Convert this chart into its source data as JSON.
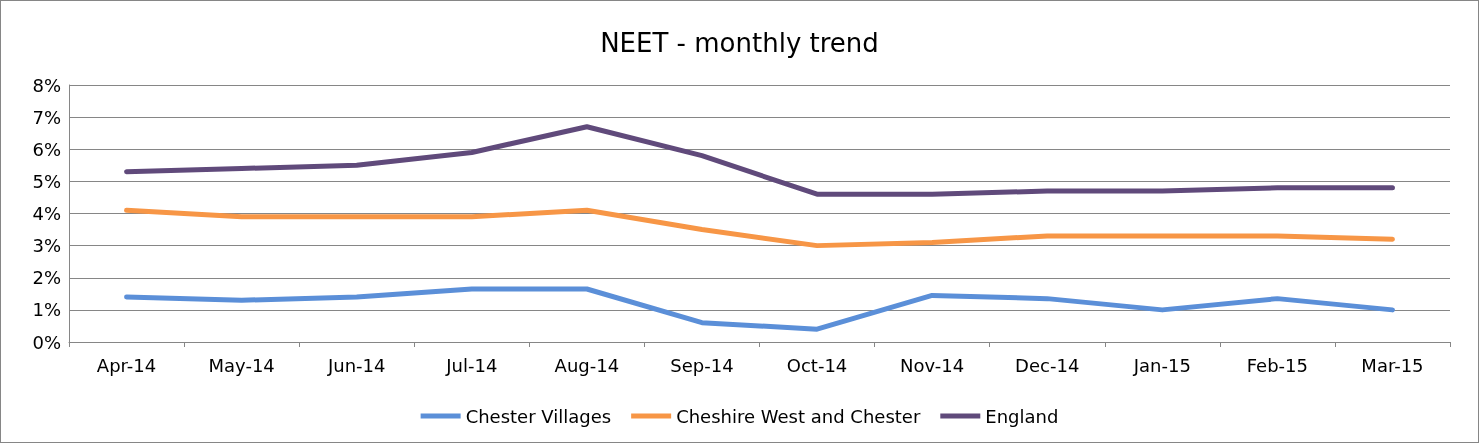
{
  "chart_data": {
    "type": "line",
    "title": "NEET - monthly trend",
    "categories": [
      "Apr-14",
      "May-14",
      "Jun-14",
      "Jul-14",
      "Aug-14",
      "Sep-14",
      "Oct-14",
      "Nov-14",
      "Dec-14",
      "Jan-15",
      "Feb-15",
      "Mar-15"
    ],
    "series": [
      {
        "name": "Chester Villages",
        "color": "#5b8fd8",
        "values": [
          1.4,
          1.3,
          1.4,
          1.65,
          1.65,
          0.6,
          0.4,
          1.45,
          1.35,
          1.0,
          1.35,
          1.0
        ]
      },
      {
        "name": "Cheshire West and Chester",
        "color": "#f79646",
        "values": [
          4.1,
          3.9,
          3.9,
          3.9,
          4.1,
          3.5,
          3.0,
          3.1,
          3.3,
          3.3,
          3.3,
          3.2
        ]
      },
      {
        "name": "England",
        "color": "#604a7b",
        "values": [
          5.3,
          5.4,
          5.5,
          5.9,
          6.7,
          5.8,
          4.6,
          4.6,
          4.7,
          4.7,
          4.8,
          4.8
        ]
      }
    ],
    "ylim": [
      0,
      8
    ],
    "yticks": [
      {
        "value": 0,
        "label": "0%"
      },
      {
        "value": 1,
        "label": "1%"
      },
      {
        "value": 2,
        "label": "2%"
      },
      {
        "value": 3,
        "label": "3%"
      },
      {
        "value": 4,
        "label": "4%"
      },
      {
        "value": 5,
        "label": "5%"
      },
      {
        "value": 6,
        "label": "6%"
      },
      {
        "value": 7,
        "label": "7%"
      },
      {
        "value": 8,
        "label": "8%"
      }
    ],
    "grid": "y",
    "legend": "bottom",
    "marker": "none",
    "line_style": "solid"
  }
}
